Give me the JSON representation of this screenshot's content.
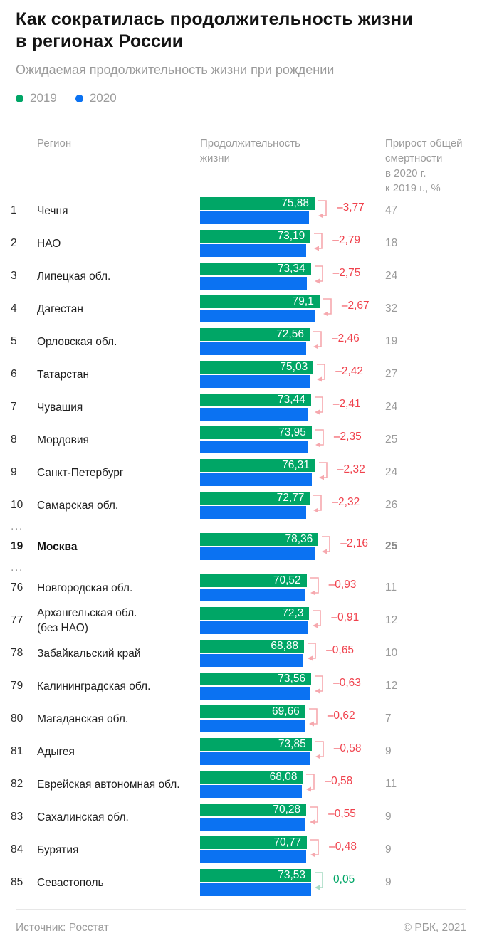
{
  "title": "Как сократилась продолжительность жизни\nв регионах России",
  "subtitle": "Ожидаемая продолжительность жизни при рождении",
  "legend": {
    "items": [
      {
        "label": "2019",
        "color": "#00a666"
      },
      {
        "label": "2020",
        "color": "#0b72f2"
      }
    ]
  },
  "columns": {
    "region": "Регион",
    "life_expectancy": "Продолжительность\nжизни",
    "mortality": "Прирост общей\nсмертности\nв 2020 г.\nк 2019 г., %"
  },
  "colors": {
    "bar_2019": "#00a666",
    "bar_2020": "#0b72f2",
    "negative_text": "#f0424d",
    "negative_arrow": "#f6a8ae",
    "positive_text": "#00a666",
    "positive_arrow": "#a8dcc4"
  },
  "chart_data": {
    "type": "bar",
    "title": "Как сократилась продолжительность жизни в регионах России",
    "subtitle": "Ожидаемая продолжительность жизни при рождении",
    "series_names": [
      "2019",
      "2020"
    ],
    "unit": "лет",
    "x_scale_note": "bars start at 0 years, ~2.12 px per year",
    "rows": [
      {
        "rank": "1",
        "region": "Чечня",
        "value_2019": 75.88,
        "value_label": "75,88",
        "change": -3.77,
        "change_label": "–3,77",
        "mortality": "47",
        "bold": false
      },
      {
        "rank": "2",
        "region": "НАО",
        "value_2019": 73.19,
        "value_label": "73,19",
        "change": -2.79,
        "change_label": "–2,79",
        "mortality": "18",
        "bold": false
      },
      {
        "rank": "3",
        "region": "Липецкая обл.",
        "value_2019": 73.34,
        "value_label": "73,34",
        "change": -2.75,
        "change_label": "–2,75",
        "mortality": "24",
        "bold": false
      },
      {
        "rank": "4",
        "region": "Дагестан",
        "value_2019": 79.1,
        "value_label": "79,1",
        "change": -2.67,
        "change_label": "–2,67",
        "mortality": "32",
        "bold": false
      },
      {
        "rank": "5",
        "region": "Орловская обл.",
        "value_2019": 72.56,
        "value_label": "72,56",
        "change": -2.46,
        "change_label": "–2,46",
        "mortality": "19",
        "bold": false
      },
      {
        "rank": "6",
        "region": "Татарстан",
        "value_2019": 75.03,
        "value_label": "75,03",
        "change": -2.42,
        "change_label": "–2,42",
        "mortality": "27",
        "bold": false
      },
      {
        "rank": "7",
        "region": "Чувашия",
        "value_2019": 73.44,
        "value_label": "73,44",
        "change": -2.41,
        "change_label": "–2,41",
        "mortality": "24",
        "bold": false
      },
      {
        "rank": "8",
        "region": "Мордовия",
        "value_2019": 73.95,
        "value_label": "73,95",
        "change": -2.35,
        "change_label": "–2,35",
        "mortality": "25",
        "bold": false
      },
      {
        "rank": "9",
        "region": "Санкт-Петербург",
        "value_2019": 76.31,
        "value_label": "76,31",
        "change": -2.32,
        "change_label": "–2,32",
        "mortality": "24",
        "bold": false
      },
      {
        "rank": "10",
        "region": "Самарская обл.",
        "value_2019": 72.77,
        "value_label": "72,77",
        "change": -2.32,
        "change_label": "–2,32",
        "mortality": "26",
        "bold": false
      },
      {
        "type": "ellipsis",
        "label": "..."
      },
      {
        "rank": "19",
        "region": "Москва",
        "value_2019": 78.36,
        "value_label": "78,36",
        "change": -2.16,
        "change_label": "–2,16",
        "mortality": "25",
        "bold": true
      },
      {
        "type": "ellipsis",
        "label": "..."
      },
      {
        "rank": "76",
        "region": "Новгородская обл.",
        "value_2019": 70.52,
        "value_label": "70,52",
        "change": -0.93,
        "change_label": "–0,93",
        "mortality": "11",
        "bold": false
      },
      {
        "rank": "77",
        "region": "Архангельская обл.\n(без НАО)",
        "value_2019": 72.3,
        "value_label": "72,3",
        "change": -0.91,
        "change_label": "–0,91",
        "mortality": "12",
        "bold": false
      },
      {
        "rank": "78",
        "region": "Забайкальский край",
        "value_2019": 68.88,
        "value_label": "68,88",
        "change": -0.65,
        "change_label": "–0,65",
        "mortality": "10",
        "bold": false
      },
      {
        "rank": "79",
        "region": "Калининградская обл.",
        "value_2019": 73.56,
        "value_label": "73,56",
        "change": -0.63,
        "change_label": "–0,63",
        "mortality": "12",
        "bold": false
      },
      {
        "rank": "80",
        "region": "Магаданская обл.",
        "value_2019": 69.66,
        "value_label": "69,66",
        "change": -0.62,
        "change_label": "–0,62",
        "mortality": "7",
        "bold": false
      },
      {
        "rank": "81",
        "region": "Адыгея",
        "value_2019": 73.85,
        "value_label": "73,85",
        "change": -0.58,
        "change_label": "–0,58",
        "mortality": "9",
        "bold": false
      },
      {
        "rank": "82",
        "region": "Еврейская автономная обл.",
        "value_2019": 68.08,
        "value_label": "68,08",
        "change": -0.58,
        "change_label": "–0,58",
        "mortality": "11",
        "bold": false
      },
      {
        "rank": "83",
        "region": "Сахалинская обл.",
        "value_2019": 70.28,
        "value_label": "70,28",
        "change": -0.55,
        "change_label": "–0,55",
        "mortality": "9",
        "bold": false
      },
      {
        "rank": "84",
        "region": "Бурятия",
        "value_2019": 70.77,
        "value_label": "70,77",
        "change": -0.48,
        "change_label": "–0,48",
        "mortality": "9",
        "bold": false
      },
      {
        "rank": "85",
        "region": "Севастополь",
        "value_2019": 73.53,
        "value_label": "73,53",
        "change": 0.05,
        "change_label": "0,05",
        "mortality": "9",
        "bold": false
      }
    ]
  },
  "footer": {
    "source": "Источник: Росстат",
    "copyright": "© РБК, 2021"
  }
}
